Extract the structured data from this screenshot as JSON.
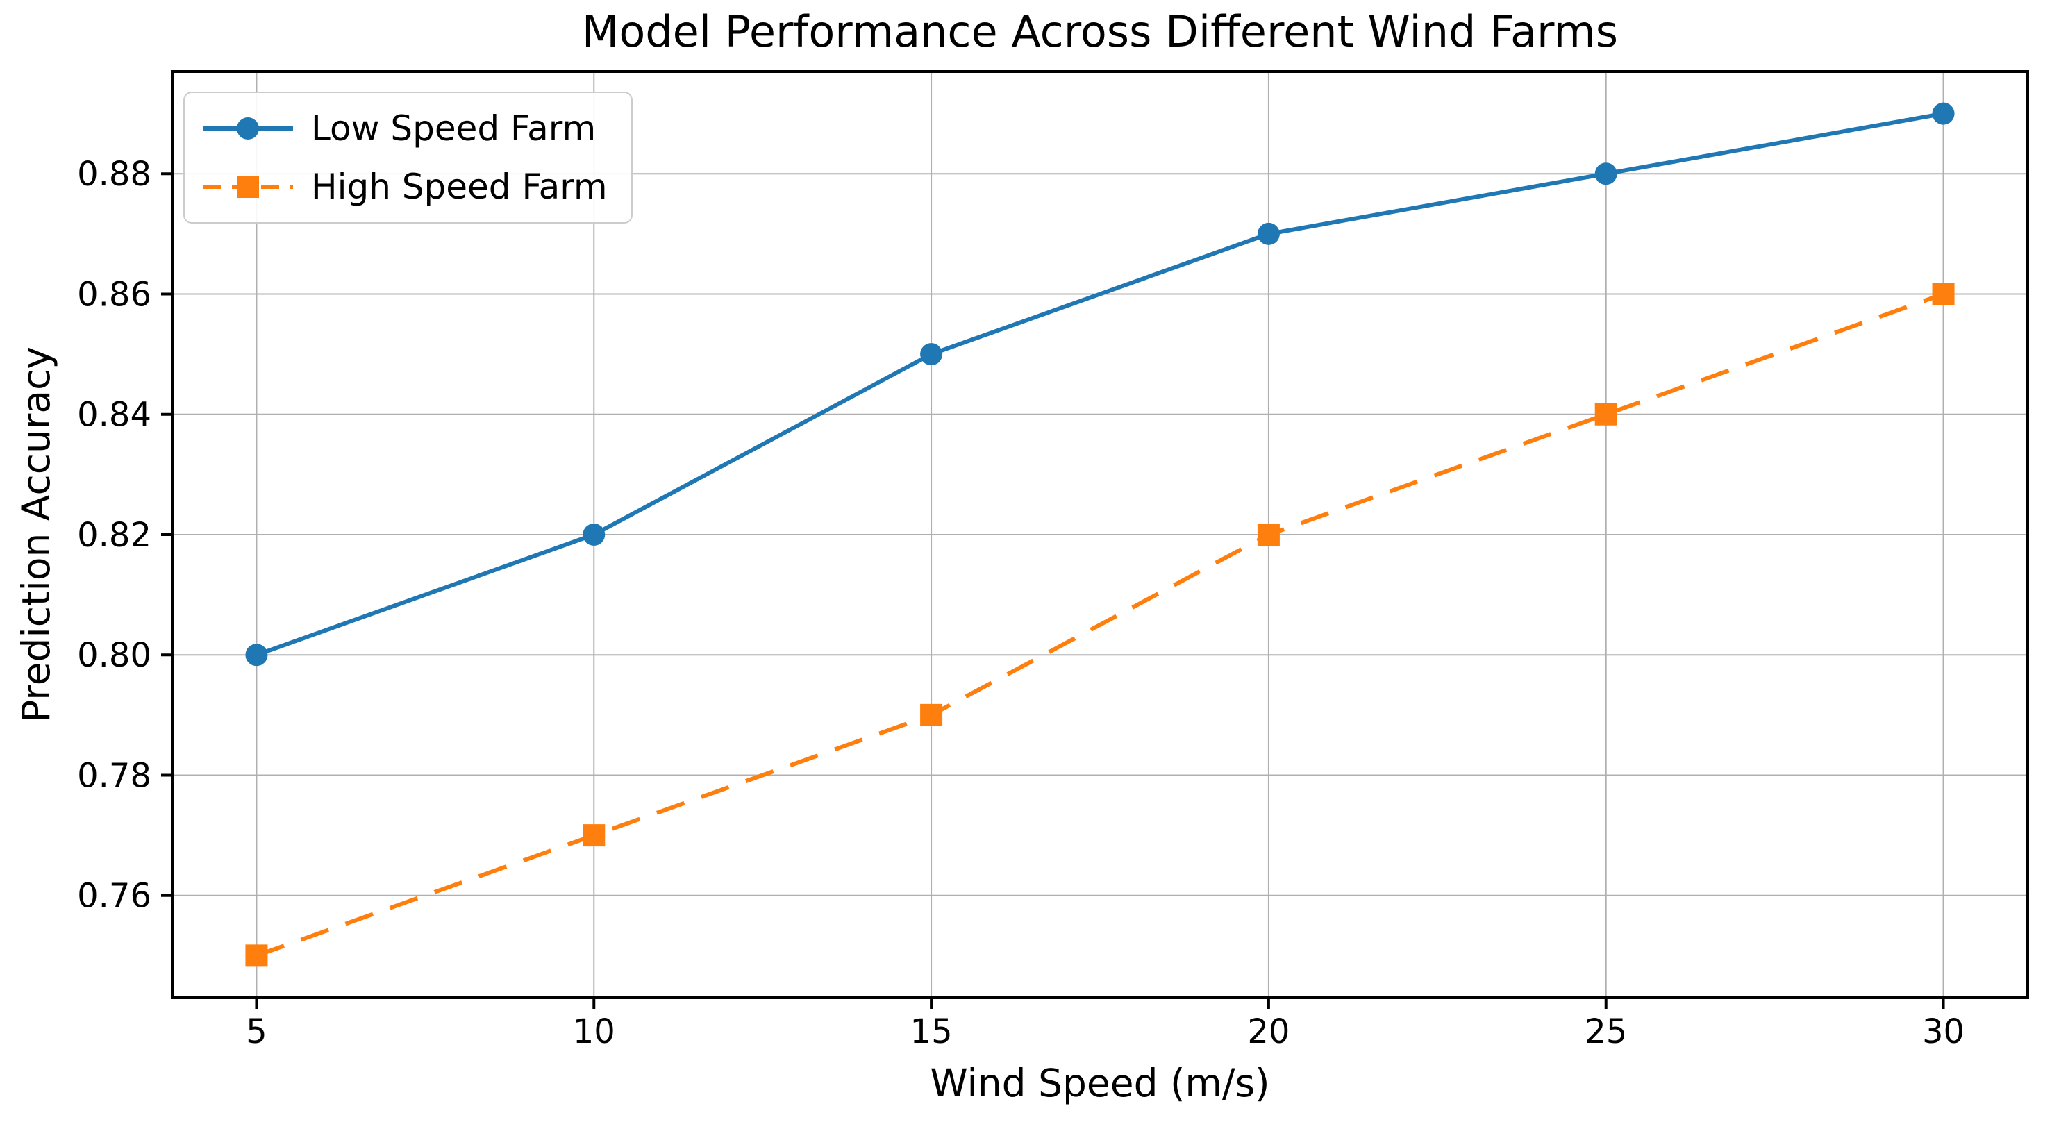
{
  "chart_data": {
    "type": "line",
    "title": "Model Performance Across Different Wind Farms",
    "xlabel": "Wind Speed (m/s)",
    "ylabel": "Prediction Accuracy",
    "x": [
      5,
      10,
      15,
      20,
      25,
      30
    ],
    "series": [
      {
        "name": "Low Speed Farm",
        "values": [
          0.8,
          0.82,
          0.85,
          0.87,
          0.88,
          0.89
        ],
        "color": "#1f77b4",
        "marker": "circle",
        "line_style": "solid"
      },
      {
        "name": "High Speed Farm",
        "values": [
          0.75,
          0.77,
          0.79,
          0.82,
          0.84,
          0.86
        ],
        "color": "#ff7f0e",
        "marker": "square",
        "line_style": "dashed"
      }
    ],
    "x_ticks": [
      5,
      10,
      15,
      20,
      25,
      30
    ],
    "y_ticks": [
      0.76,
      0.78,
      0.8,
      0.82,
      0.84,
      0.86,
      0.88
    ],
    "y_tick_decimals": 2,
    "xlim": [
      3.75,
      31.25
    ],
    "ylim": [
      0.743,
      0.897
    ],
    "grid": true,
    "legend_position": "upper-left",
    "colors": {
      "grid": "#b0b0b0",
      "axes_frame": "#000000",
      "text": "#000000",
      "background": "#ffffff",
      "legend_border": "#cccccc"
    }
  }
}
